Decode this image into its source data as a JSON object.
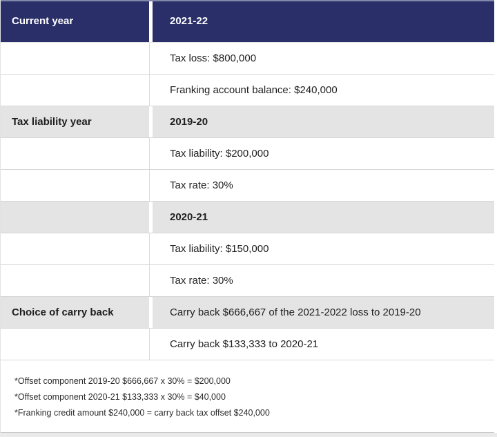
{
  "colors": {
    "header_bg": "#2a2f69",
    "header_text": "#ffffff",
    "shaded_row_bg": "#e4e4e4",
    "grid_line": "#d7d7d7",
    "body_text": "#1e1e1e",
    "bottom_strip": "#eaeaea"
  },
  "table": {
    "header": {
      "col1": "Current year",
      "col2": "2021-22"
    },
    "rows": [
      {
        "col1": "",
        "col2": "Tax loss: $800,000"
      },
      {
        "col1": "",
        "col2": "Franking account balance: $240,000"
      },
      {
        "col1": "Tax liability year",
        "col2": "2019-20"
      },
      {
        "col1": "",
        "col2": "Tax liability: $200,000"
      },
      {
        "col1": "",
        "col2": "Tax rate: 30%"
      },
      {
        "col1": "",
        "col2": "2020-21"
      },
      {
        "col1": "",
        "col2": "Tax liability: $150,000"
      },
      {
        "col1": "",
        "col2": "Tax rate: 30%"
      },
      {
        "col1": "Choice of carry back",
        "col2": "Carry back $666,667 of the 2021-2022 loss to 2019-20"
      },
      {
        "col1": "",
        "col2": "Carry back $133,333 to 2020-21"
      }
    ],
    "footnotes": [
      "*Offset component 2019-20 $666,667 x 30% = $200,000",
      "*Offset component 2020-21 $133,333 x 30% = $40,000",
      "*Franking credit amount $240,000 = carry back tax offset $240,000"
    ]
  }
}
